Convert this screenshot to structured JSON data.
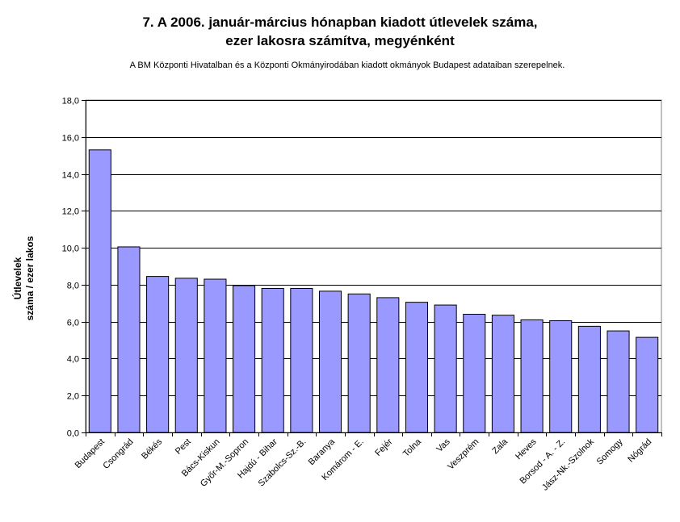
{
  "chart_data": {
    "type": "bar",
    "title_line1": "7. A 2006. január-március hónapban kiadott útlevelek száma,",
    "title_line2": "ezer lakosra számítva, megyénként",
    "subtitle": "A BM Központi Hivatalban és a Központi Okmányirodában kiadott okmányok Budapest adataiban szerepelnek.",
    "ylabel_line1": "Útlevelek",
    "ylabel_line2": "száma / ezer lakos",
    "xlabel": "",
    "ylim": [
      0,
      18
    ],
    "ytick_step": 2,
    "ytick_labels": [
      "0,0",
      "2,0",
      "4,0",
      "6,0",
      "8,0",
      "10,0",
      "12,0",
      "14,0",
      "16,0",
      "18,0"
    ],
    "grid": true,
    "categories": [
      "Budapest",
      "Csongrád",
      "Békés",
      "Pest",
      "Bács-Kiskun",
      "Győr-M.-Sopron",
      "Hajdú - Bihar",
      "Szabolcs-Sz.-B.",
      "Baranya",
      "Komárom - E.",
      "Fejér",
      "Tolna",
      "Vas",
      "Veszprém",
      "Zala",
      "Heves",
      "Borsod - A. - Z.",
      "Jász-Nk.-Szolnok",
      "Somogy",
      "Nógrád"
    ],
    "values": [
      15.3,
      10.05,
      8.45,
      8.35,
      8.3,
      7.95,
      7.8,
      7.8,
      7.65,
      7.5,
      7.3,
      7.05,
      6.9,
      6.4,
      6.35,
      6.1,
      6.05,
      5.75,
      5.5,
      5.15
    ],
    "colors": {
      "bar": "#9999ff",
      "bar_stroke": "#000000",
      "grid": "#000000",
      "plot_bg": "#ffffff"
    }
  }
}
